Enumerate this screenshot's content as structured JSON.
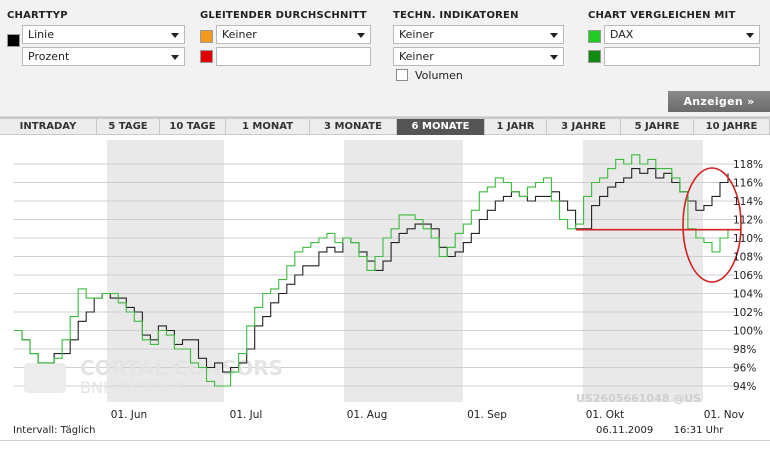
{
  "controls": {
    "charttyp": {
      "title": "CHARTTYP",
      "type_select": "Linie",
      "scale_select": "Prozent",
      "color": "#000000"
    },
    "moving_average": {
      "title": "GLEITENDER DURCHSCHNITT",
      "select": "Keiner",
      "color1": "#f39a1e",
      "color2": "#e00000",
      "input": ""
    },
    "indicators": {
      "title": "TECHN. INDIKATOREN",
      "select1": "Keiner",
      "select2": "Keiner",
      "volume_label": "Volumen"
    },
    "compare": {
      "title": "CHART VERGLEICHEN MIT",
      "select": "DAX",
      "color1": "#22cc22",
      "color2": "#108a10",
      "input": ""
    },
    "show_button": "Anzeigen »"
  },
  "tabs": [
    {
      "label": "INTRADAY",
      "active": false
    },
    {
      "label": "5 TAGE",
      "active": false
    },
    {
      "label": "10 TAGE",
      "active": false
    },
    {
      "label": "1 MONAT",
      "active": false
    },
    {
      "label": "3 MONATE",
      "active": false
    },
    {
      "label": "6 MONATE",
      "active": true
    },
    {
      "label": "1 JAHR",
      "active": false
    },
    {
      "label": "3 JAHRE",
      "active": false
    },
    {
      "label": "5 JAHRE",
      "active": false
    },
    {
      "label": "10 JAHRE",
      "active": false
    }
  ],
  "chart_data": {
    "type": "line",
    "y_ticks": [
      "118%",
      "116%",
      "114%",
      "112%",
      "110%",
      "108%",
      "106%",
      "104%",
      "102%",
      "100%",
      "98%",
      "96%",
      "94%"
    ],
    "ylim": [
      93,
      120
    ],
    "x_ticks": [
      "01. Jun",
      "01. Jul",
      "01. Aug",
      "01. Sep",
      "01. Okt",
      "01. Nov"
    ],
    "watermark": "CORTAL CONSORS",
    "watermark_sub": "BNP PARIBAS",
    "isin_label": "US2605661048 @US",
    "reference_line": 110.9,
    "series": [
      {
        "color": "#222222",
        "values": [
          100.0,
          99.0,
          97.5,
          96.5,
          96.5,
          97.5,
          97.5,
          99.0,
          101.0,
          102.0,
          103.5,
          104.0,
          103.5,
          103.5,
          102.5,
          102.0,
          99.5,
          99.0,
          100.5,
          100.0,
          98.5,
          99.0,
          99.0,
          97.0,
          96.0,
          96.5,
          95.5,
          96.0,
          96.5,
          98.0,
          100.5,
          101.5,
          103.0,
          104.0,
          105.0,
          106.0,
          107.0,
          107.0,
          108.5,
          109.0,
          108.5,
          110.0,
          109.5,
          108.5,
          107.5,
          106.5,
          107.5,
          109.5,
          110.5,
          111.0,
          111.5,
          111.5,
          111.0,
          109.0,
          108.0,
          108.5,
          109.5,
          110.5,
          112.0,
          113.0,
          114.0,
          114.5,
          115.0,
          114.5,
          114.0,
          114.5,
          114.5,
          115.0,
          114.0,
          113.0,
          111.0,
          111.0,
          113.5,
          114.5,
          115.5,
          116.0,
          116.5,
          117.5,
          117.0,
          117.5,
          116.5,
          117.0,
          116.0,
          115.0,
          114.0,
          113.0,
          113.5,
          114.5,
          116.0,
          117.0
        ]
      },
      {
        "color": "#3dbb3d",
        "values": [
          100.0,
          99.0,
          97.5,
          96.5,
          96.5,
          97.0,
          99.0,
          101.5,
          104.5,
          103.5,
          103.5,
          104.0,
          104.0,
          103.0,
          102.0,
          101.0,
          99.0,
          98.5,
          100.0,
          99.5,
          98.0,
          98.0,
          96.5,
          96.0,
          94.5,
          94.0,
          94.0,
          95.5,
          97.5,
          100.5,
          102.5,
          104.0,
          104.5,
          105.5,
          107.0,
          108.5,
          109.0,
          109.5,
          110.0,
          110.5,
          109.5,
          110.0,
          109.5,
          108.0,
          106.5,
          108.0,
          110.0,
          111.0,
          112.5,
          112.5,
          112.0,
          111.0,
          110.0,
          108.0,
          109.0,
          110.5,
          111.5,
          113.0,
          115.0,
          115.5,
          116.5,
          116.0,
          115.0,
          114.5,
          115.5,
          116.0,
          116.5,
          114.0,
          112.0,
          111.0,
          111.5,
          114.5,
          116.0,
          116.5,
          117.5,
          118.5,
          118.0,
          119.0,
          118.0,
          118.5,
          117.5,
          117.5,
          116.5,
          115.0,
          111.0,
          110.0,
          109.5,
          108.5,
          110.0,
          111.0
        ]
      }
    ]
  },
  "footer": {
    "interval": "Intervall: Täglich",
    "date": "06.11.2009",
    "time": "16:31 Uhr"
  }
}
